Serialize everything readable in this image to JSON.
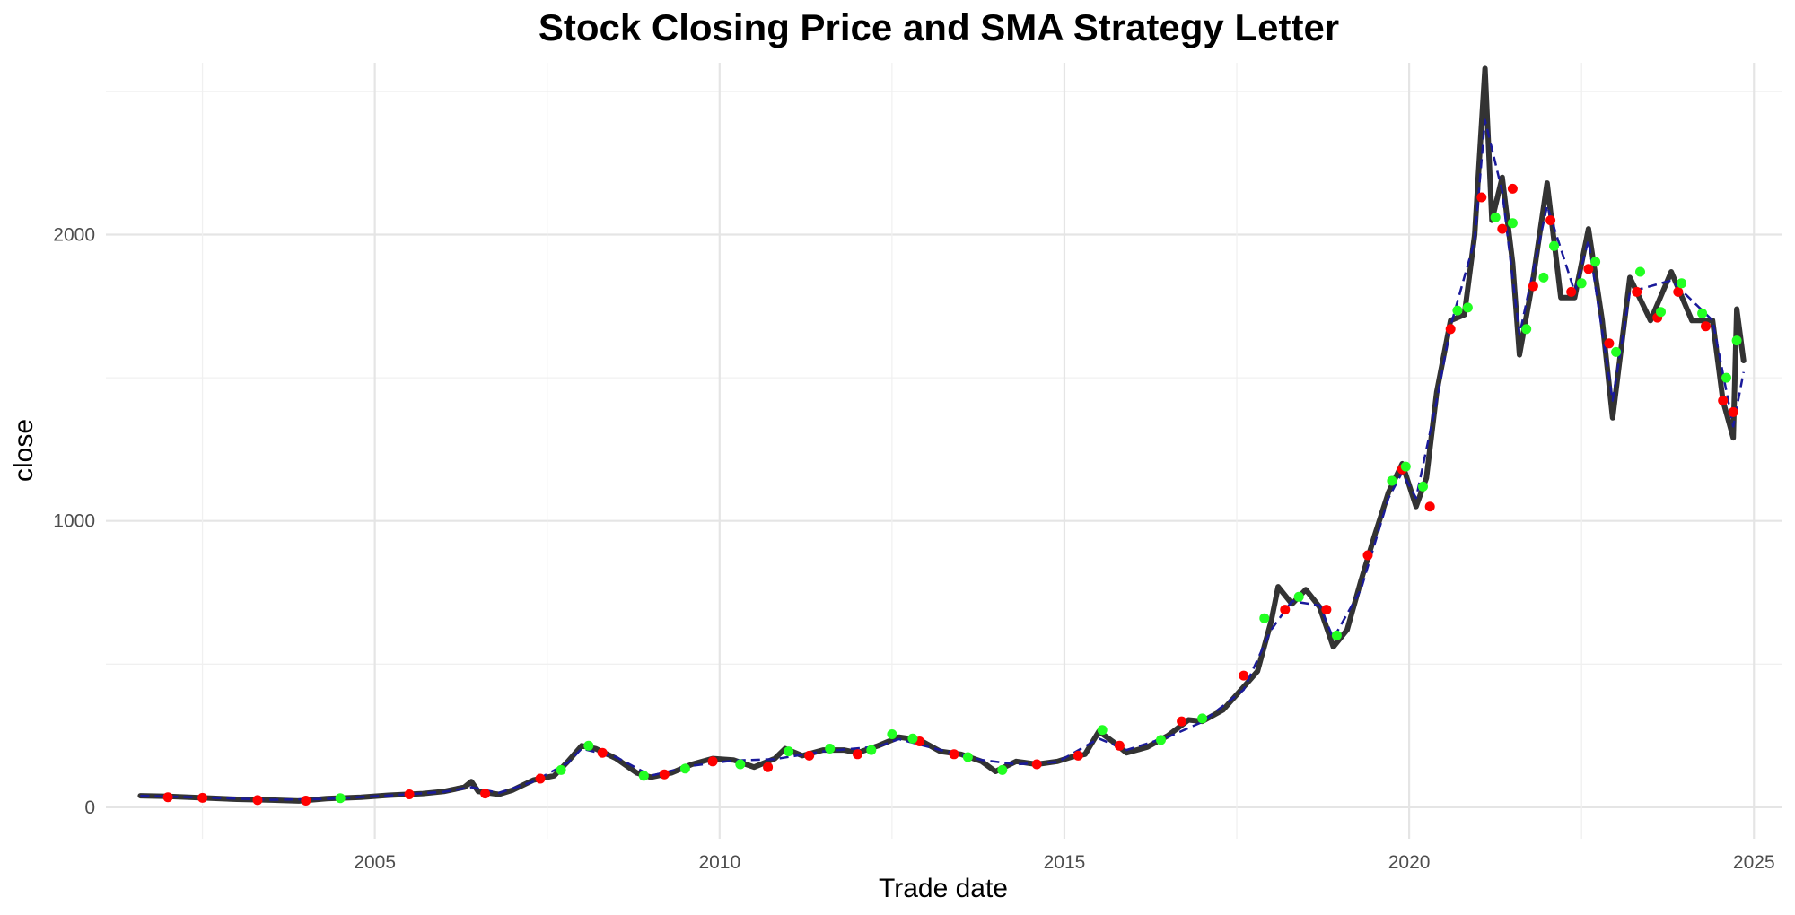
{
  "chart_data": {
    "type": "line",
    "title": "Stock Closing Price and SMA Strategy Letter",
    "xlabel": "Trade date",
    "ylabel": "close",
    "xlim": [
      2001.1,
      2025.4
    ],
    "ylim": [
      -110,
      2600
    ],
    "x_ticks": [
      2005,
      2010,
      2015,
      2020,
      2025
    ],
    "y_ticks": [
      0,
      1000,
      2000
    ],
    "grid": true,
    "legend": "none",
    "colors": {
      "close": "#333333",
      "sma": "#1a1a9a",
      "buy": "#22ff22",
      "sell": "#ff0000"
    },
    "series": [
      {
        "key": "close",
        "values": [
          [
            2001.6,
            40
          ],
          [
            2002.0,
            38
          ],
          [
            2002.5,
            33
          ],
          [
            2003.0,
            28
          ],
          [
            2003.5,
            25
          ],
          [
            2003.9,
            22
          ],
          [
            2004.3,
            30
          ],
          [
            2004.8,
            35
          ],
          [
            2005.2,
            42
          ],
          [
            2005.7,
            48
          ],
          [
            2006.0,
            55
          ],
          [
            2006.3,
            70
          ],
          [
            2006.4,
            90
          ],
          [
            2006.5,
            55
          ],
          [
            2006.8,
            45
          ],
          [
            2007.0,
            60
          ],
          [
            2007.3,
            95
          ],
          [
            2007.6,
            110
          ],
          [
            2007.8,
            160
          ],
          [
            2008.0,
            215
          ],
          [
            2008.2,
            205
          ],
          [
            2008.5,
            170
          ],
          [
            2008.8,
            120
          ],
          [
            2009.0,
            105
          ],
          [
            2009.3,
            120
          ],
          [
            2009.6,
            150
          ],
          [
            2009.9,
            170
          ],
          [
            2010.2,
            165
          ],
          [
            2010.5,
            140
          ],
          [
            2010.8,
            170
          ],
          [
            2010.95,
            205
          ],
          [
            2011.2,
            180
          ],
          [
            2011.5,
            200
          ],
          [
            2011.8,
            200
          ],
          [
            2012.0,
            190
          ],
          [
            2012.3,
            215
          ],
          [
            2012.6,
            245
          ],
          [
            2012.9,
            235
          ],
          [
            2013.2,
            195
          ],
          [
            2013.5,
            185
          ],
          [
            2013.8,
            160
          ],
          [
            2014.0,
            125
          ],
          [
            2014.3,
            160
          ],
          [
            2014.6,
            150
          ],
          [
            2014.9,
            160
          ],
          [
            2015.1,
            175
          ],
          [
            2015.3,
            185
          ],
          [
            2015.5,
            265
          ],
          [
            2015.7,
            230
          ],
          [
            2015.9,
            190
          ],
          [
            2016.2,
            210
          ],
          [
            2016.5,
            250
          ],
          [
            2016.8,
            305
          ],
          [
            2017.0,
            300
          ],
          [
            2017.3,
            340
          ],
          [
            2017.6,
            420
          ],
          [
            2017.8,
            475
          ],
          [
            2018.0,
            650
          ],
          [
            2018.1,
            770
          ],
          [
            2018.3,
            710
          ],
          [
            2018.5,
            760
          ],
          [
            2018.7,
            700
          ],
          [
            2018.9,
            560
          ],
          [
            2019.1,
            620
          ],
          [
            2019.3,
            790
          ],
          [
            2019.5,
            950
          ],
          [
            2019.7,
            1100
          ],
          [
            2019.9,
            1200
          ],
          [
            2020.1,
            1050
          ],
          [
            2020.25,
            1150
          ],
          [
            2020.4,
            1450
          ],
          [
            2020.6,
            1700
          ],
          [
            2020.8,
            1720
          ],
          [
            2020.95,
            2000
          ],
          [
            2021.1,
            2580
          ],
          [
            2021.2,
            2050
          ],
          [
            2021.35,
            2200
          ],
          [
            2021.5,
            1900
          ],
          [
            2021.6,
            1580
          ],
          [
            2021.8,
            1850
          ],
          [
            2022.0,
            2180
          ],
          [
            2022.2,
            1780
          ],
          [
            2022.4,
            1780
          ],
          [
            2022.6,
            2020
          ],
          [
            2022.8,
            1700
          ],
          [
            2022.95,
            1360
          ],
          [
            2023.2,
            1850
          ],
          [
            2023.5,
            1700
          ],
          [
            2023.8,
            1870
          ],
          [
            2024.1,
            1700
          ],
          [
            2024.4,
            1700
          ],
          [
            2024.55,
            1420
          ],
          [
            2024.7,
            1290
          ],
          [
            2024.75,
            1740
          ],
          [
            2024.85,
            1560
          ]
        ]
      },
      {
        "key": "sma",
        "values": [
          [
            2001.6,
            40
          ],
          [
            2002.5,
            34
          ],
          [
            2003.5,
            26
          ],
          [
            2004.3,
            29
          ],
          [
            2005.2,
            41
          ],
          [
            2006.0,
            54
          ],
          [
            2006.4,
            70
          ],
          [
            2006.8,
            50
          ],
          [
            2007.3,
            90
          ],
          [
            2007.8,
            155
          ],
          [
            2008.0,
            205
          ],
          [
            2008.5,
            175
          ],
          [
            2009.0,
            110
          ],
          [
            2009.6,
            145
          ],
          [
            2010.2,
            163
          ],
          [
            2010.8,
            168
          ],
          [
            2011.5,
            195
          ],
          [
            2012.3,
            212
          ],
          [
            2012.6,
            238
          ],
          [
            2013.2,
            200
          ],
          [
            2013.8,
            165
          ],
          [
            2014.3,
            150
          ],
          [
            2014.9,
            158
          ],
          [
            2015.5,
            240
          ],
          [
            2015.9,
            200
          ],
          [
            2016.5,
            245
          ],
          [
            2017.0,
            298
          ],
          [
            2017.6,
            410
          ],
          [
            2018.0,
            620
          ],
          [
            2018.3,
            720
          ],
          [
            2018.7,
            705
          ],
          [
            2018.9,
            590
          ],
          [
            2019.3,
            760
          ],
          [
            2019.7,
            1080
          ],
          [
            2019.9,
            1170
          ],
          [
            2020.1,
            1080
          ],
          [
            2020.4,
            1420
          ],
          [
            2020.6,
            1680
          ],
          [
            2020.95,
            1980
          ],
          [
            2021.1,
            2400
          ],
          [
            2021.35,
            2150
          ],
          [
            2021.6,
            1650
          ],
          [
            2022.0,
            2100
          ],
          [
            2022.4,
            1800
          ],
          [
            2022.6,
            1980
          ],
          [
            2022.95,
            1420
          ],
          [
            2023.2,
            1800
          ],
          [
            2023.8,
            1840
          ],
          [
            2024.4,
            1700
          ],
          [
            2024.7,
            1330
          ],
          [
            2024.85,
            1520
          ]
        ]
      },
      {
        "key": "buy",
        "values": [
          [
            2004.5,
            32
          ],
          [
            2007.7,
            130
          ],
          [
            2008.1,
            215
          ],
          [
            2008.9,
            110
          ],
          [
            2009.5,
            135
          ],
          [
            2010.3,
            150
          ],
          [
            2011.0,
            195
          ],
          [
            2011.6,
            205
          ],
          [
            2012.2,
            200
          ],
          [
            2012.5,
            255
          ],
          [
            2012.8,
            240
          ],
          [
            2013.6,
            175
          ],
          [
            2014.1,
            130
          ],
          [
            2015.55,
            270
          ],
          [
            2016.4,
            235
          ],
          [
            2017.0,
            310
          ],
          [
            2017.9,
            660
          ],
          [
            2018.4,
            735
          ],
          [
            2018.95,
            600
          ],
          [
            2019.75,
            1140
          ],
          [
            2019.95,
            1190
          ],
          [
            2020.2,
            1120
          ],
          [
            2020.7,
            1735
          ],
          [
            2020.85,
            1745
          ],
          [
            2021.25,
            2060
          ],
          [
            2021.5,
            2040
          ],
          [
            2021.7,
            1670
          ],
          [
            2021.95,
            1850
          ],
          [
            2022.1,
            1960
          ],
          [
            2022.5,
            1830
          ],
          [
            2022.7,
            1905
          ],
          [
            2023.0,
            1590
          ],
          [
            2023.35,
            1870
          ],
          [
            2023.65,
            1730
          ],
          [
            2023.95,
            1830
          ],
          [
            2024.25,
            1725
          ],
          [
            2024.6,
            1500
          ],
          [
            2024.75,
            1630
          ]
        ]
      },
      {
        "key": "sell",
        "values": [
          [
            2002.0,
            35
          ],
          [
            2002.5,
            33
          ],
          [
            2003.3,
            25
          ],
          [
            2004.0,
            23
          ],
          [
            2005.5,
            45
          ],
          [
            2006.6,
            48
          ],
          [
            2007.4,
            100
          ],
          [
            2008.3,
            190
          ],
          [
            2009.2,
            115
          ],
          [
            2009.9,
            160
          ],
          [
            2010.7,
            140
          ],
          [
            2011.3,
            180
          ],
          [
            2012.0,
            185
          ],
          [
            2012.9,
            230
          ],
          [
            2013.4,
            185
          ],
          [
            2014.6,
            150
          ],
          [
            2015.2,
            180
          ],
          [
            2015.8,
            215
          ],
          [
            2016.7,
            300
          ],
          [
            2017.6,
            460
          ],
          [
            2018.2,
            690
          ],
          [
            2018.8,
            690
          ],
          [
            2019.4,
            880
          ],
          [
            2019.9,
            1180
          ],
          [
            2020.3,
            1050
          ],
          [
            2020.6,
            1670
          ],
          [
            2021.05,
            2130
          ],
          [
            2021.35,
            2020
          ],
          [
            2021.5,
            2160
          ],
          [
            2021.8,
            1820
          ],
          [
            2022.05,
            2050
          ],
          [
            2022.35,
            1800
          ],
          [
            2022.6,
            1880
          ],
          [
            2022.9,
            1620
          ],
          [
            2023.3,
            1800
          ],
          [
            2023.6,
            1710
          ],
          [
            2023.9,
            1800
          ],
          [
            2024.3,
            1680
          ],
          [
            2024.55,
            1420
          ],
          [
            2024.7,
            1380
          ]
        ]
      }
    ]
  }
}
